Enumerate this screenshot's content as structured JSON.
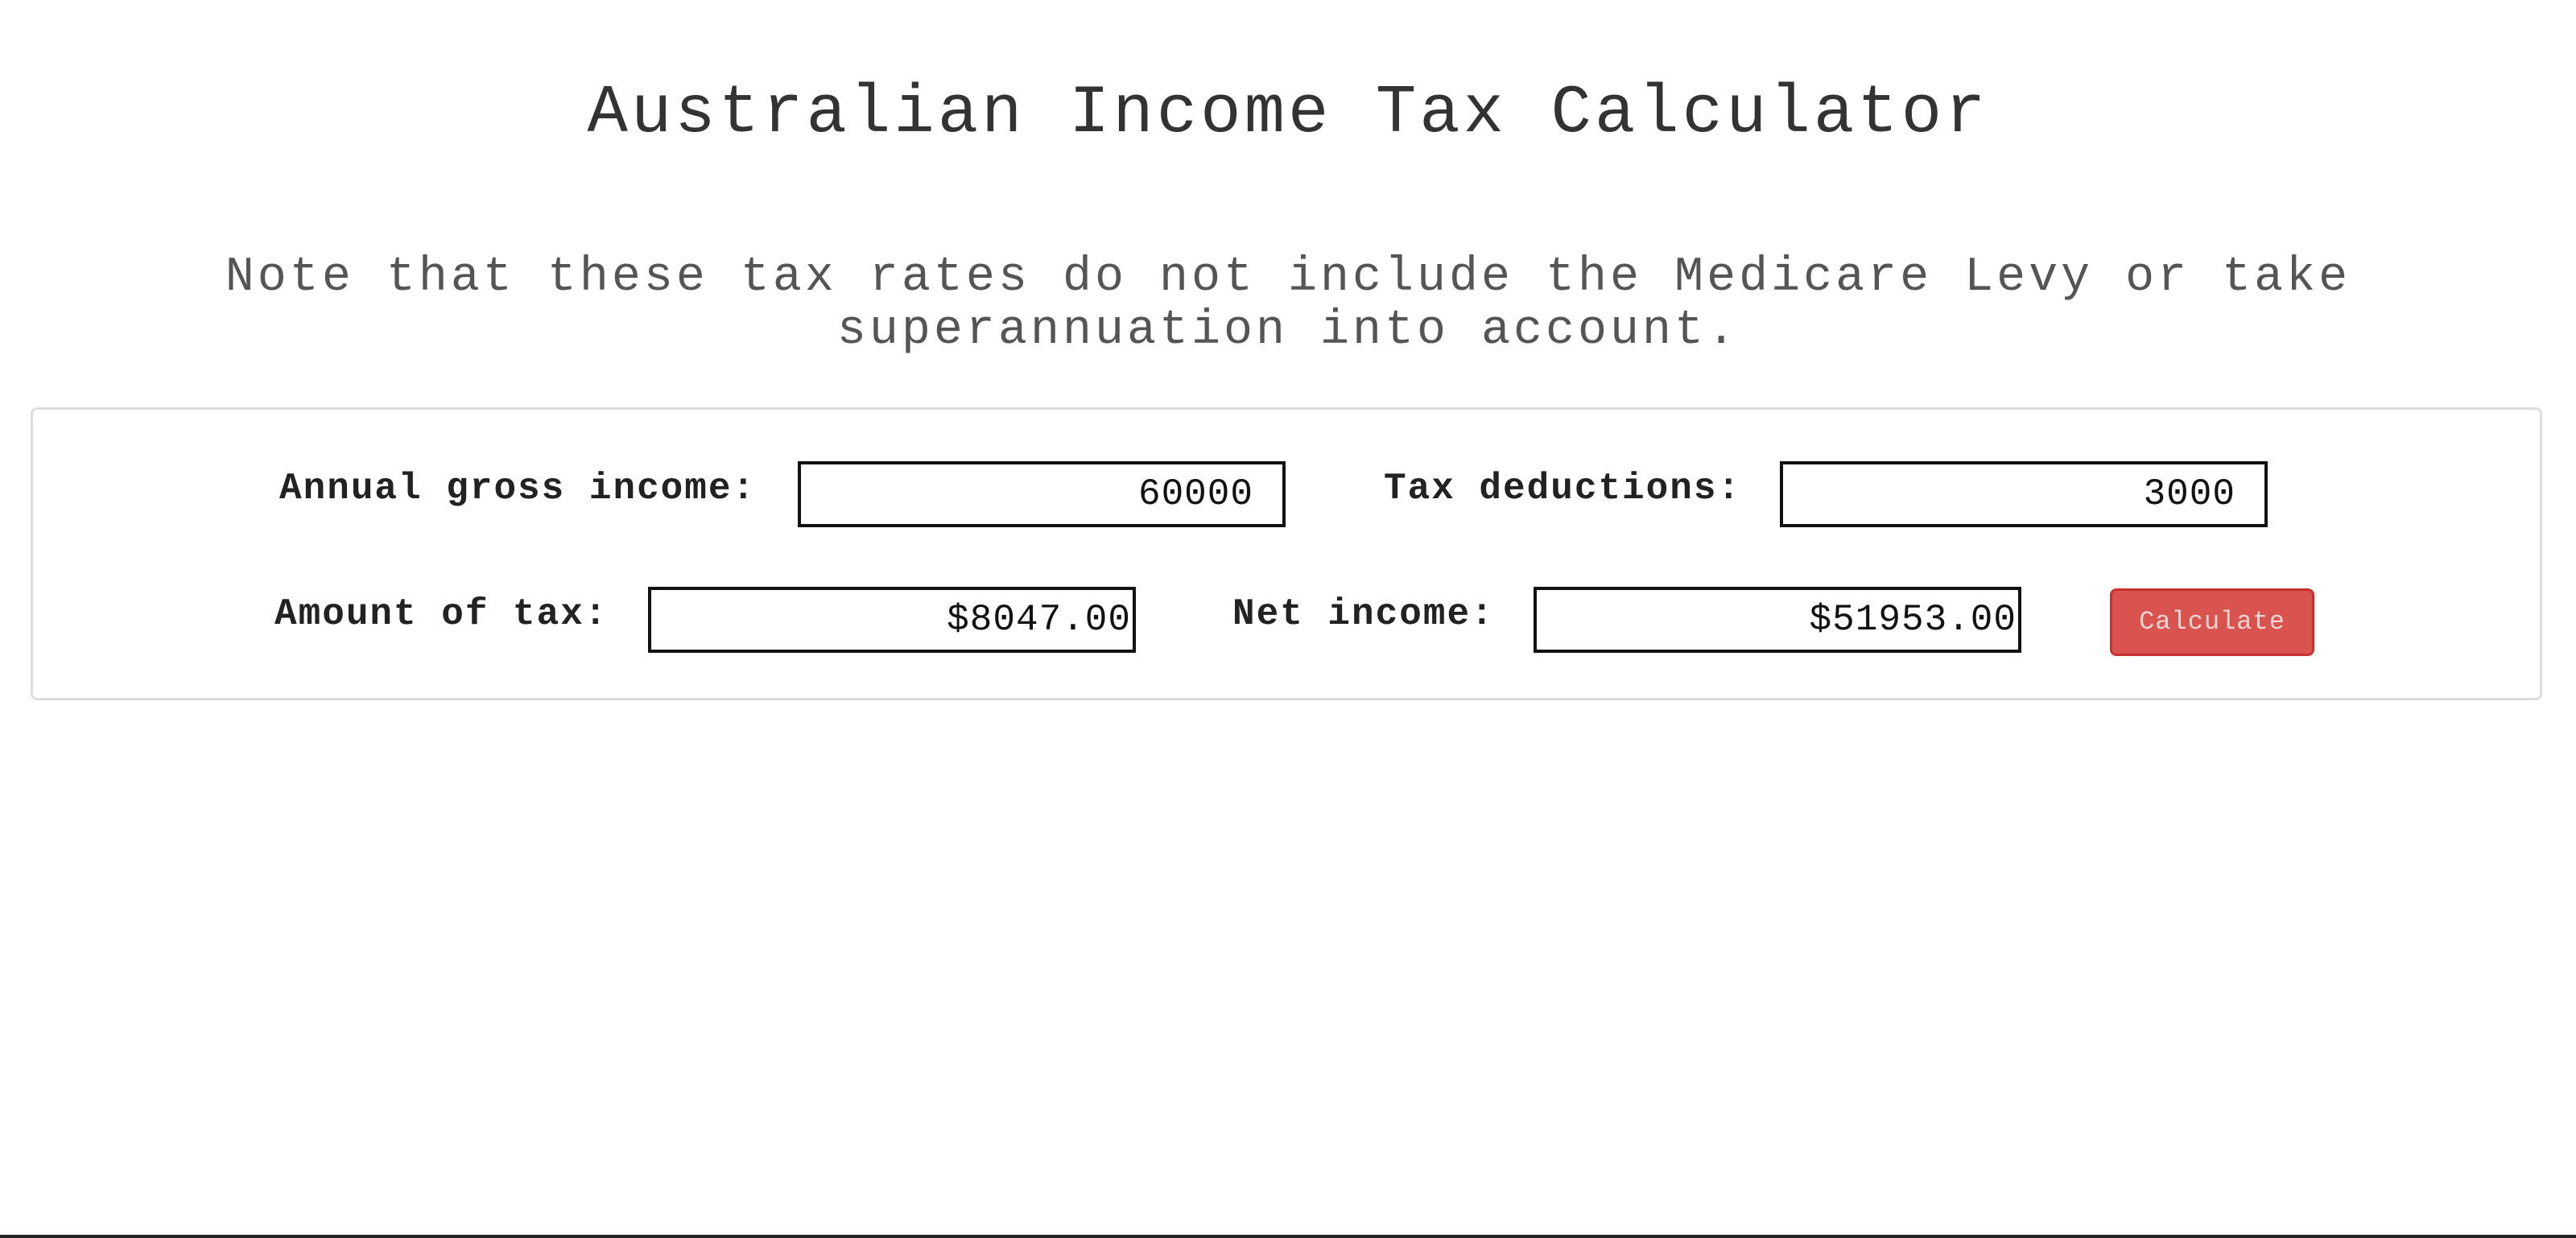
{
  "page": {
    "title": "Australian Income Tax Calculator",
    "note": "Note that these tax rates do not include the Medicare Levy or take superannuation into account."
  },
  "form": {
    "gross_income": {
      "label": "Annual gross income:",
      "value": "60000"
    },
    "deductions": {
      "label": "Tax deductions:",
      "value": "3000"
    },
    "tax_amount": {
      "label": "Amount of tax:",
      "value": "$8047.00"
    },
    "net_income": {
      "label": "Net income:",
      "value": "$51953.00"
    },
    "calculate_label": "Calculate"
  },
  "colors": {
    "button_bg": "#d9534f",
    "button_text": "#f6d6d5",
    "panel_border": "#dddddd",
    "field_border": "#111111"
  }
}
